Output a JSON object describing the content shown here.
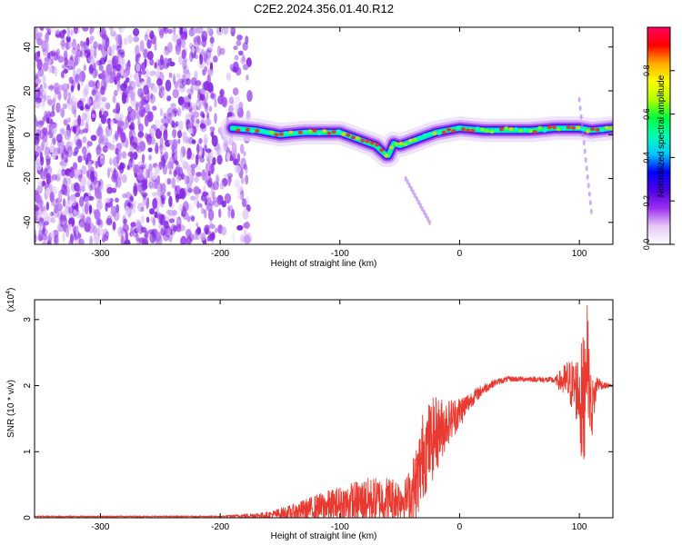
{
  "title": "C2E2.2024.356.01.40.R12",
  "colors": {
    "snr_line": "#e83a30",
    "speckle": "#8a2be2",
    "colorbar": [
      "#ffffff",
      "#e6c8f5",
      "#9b30f0",
      "#4b00e0",
      "#0000ff",
      "#00c8ff",
      "#00ffb4",
      "#00ff3c",
      "#b4ff00",
      "#ffff00",
      "#ffaa00",
      "#ff0000",
      "#ff0060"
    ]
  },
  "chart_data": [
    {
      "type": "heatmap",
      "xlabel": "Height of straight line (km)",
      "ylabel": "Frequency (Hz)",
      "xlim": [
        -355,
        128
      ],
      "ylim": [
        -50,
        49
      ],
      "xticks": [
        -300,
        -200,
        -100,
        0,
        100
      ],
      "yticks": [
        -40,
        -20,
        0,
        20,
        40
      ],
      "colorbar": {
        "label": "Normalized spectral amplitude",
        "range": [
          0,
          1
        ],
        "ticks": [
          "0.0",
          "0.2",
          "0.4",
          "0.6",
          "0.8"
        ],
        "tick_values": [
          0.0,
          0.2,
          0.4,
          0.6,
          0.8
        ]
      },
      "noise_region_x": [
        -355,
        -175
      ],
      "ridge": {
        "x": [
          -190,
          -170,
          -150,
          -130,
          -110,
          -100,
          -90,
          -80,
          -70,
          -60,
          -55,
          -50,
          -40,
          -30,
          -20,
          -10,
          0,
          20,
          40,
          60,
          80,
          100,
          110,
          128
        ],
        "freq": [
          3,
          2,
          0,
          1,
          1,
          1,
          -1,
          -3,
          -5,
          -10,
          -4,
          -5,
          -3,
          -1,
          1,
          2,
          3,
          2,
          2,
          2,
          3,
          3,
          2,
          3
        ]
      },
      "side_tracks": [
        {
          "x": [
            -45,
            -25
          ],
          "freq": [
            -20,
            -40
          ]
        },
        {
          "x": [
            100,
            110
          ],
          "freq": [
            16,
            -35
          ]
        }
      ]
    },
    {
      "type": "line",
      "xlabel": "Height of straight line (km)",
      "ylabel": "SNR (10 * v/v)",
      "scale_label": "(x10",
      "scale_exp": "4",
      "scale_close": ")",
      "xlim": [
        -355,
        128
      ],
      "ylim": [
        0,
        3.3
      ],
      "xticks": [
        -300,
        -200,
        -100,
        0,
        100
      ],
      "yticks": [
        0,
        1,
        2,
        3
      ],
      "envelope": {
        "x": [
          -355,
          -200,
          -160,
          -140,
          -120,
          -100,
          -80,
          -60,
          -45,
          -40,
          -35,
          -30,
          -20,
          -10,
          0,
          10,
          20,
          30,
          40,
          60,
          80,
          90,
          95,
          100,
          103,
          106,
          110,
          115,
          120,
          128
        ],
        "y": [
          0.02,
          0.02,
          0.04,
          0.08,
          0.15,
          0.2,
          0.25,
          0.28,
          0.3,
          0.35,
          0.6,
          1.0,
          1.25,
          1.45,
          1.6,
          1.8,
          1.95,
          2.05,
          2.1,
          2.1,
          2.08,
          2.05,
          2.0,
          1.9,
          1.5,
          2.6,
          1.6,
          2.05,
          2.0,
          2.0
        ],
        "amp": [
          0.01,
          0.01,
          0.05,
          0.12,
          0.2,
          0.28,
          0.35,
          0.35,
          0.3,
          0.5,
          0.6,
          0.7,
          0.6,
          0.35,
          0.25,
          0.12,
          0.08,
          0.05,
          0.04,
          0.04,
          0.05,
          0.35,
          0.4,
          0.6,
          1.3,
          0.8,
          0.5,
          0.12,
          0.05,
          0.02
        ]
      }
    }
  ]
}
